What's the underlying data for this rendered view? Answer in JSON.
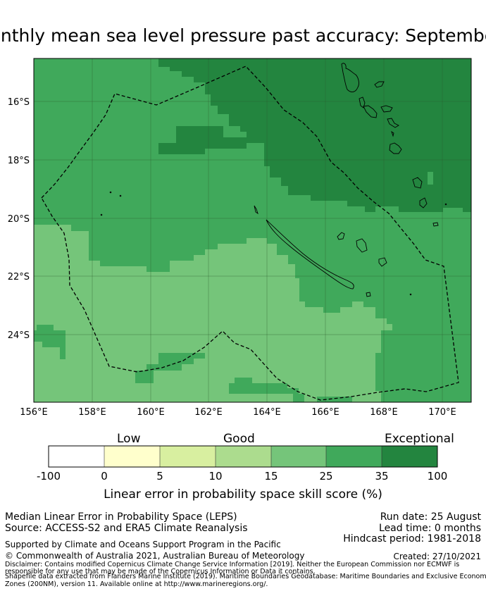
{
  "title": "Monthly mean sea level pressure past accuracy: September",
  "map": {
    "lon_ticks": [
      "156°E",
      "158°E",
      "160°E",
      "162°E",
      "164°E",
      "166°E",
      "168°E",
      "170°E"
    ],
    "lat_ticks": [
      "16°S",
      "18°S",
      "20°S",
      "22°S",
      "24°S"
    ],
    "extent": {
      "lon": [
        156.0,
        171.0
      ],
      "lat": [
        -14.5,
        -26.3
      ]
    },
    "grid": true,
    "boundary": "dashed",
    "colors": {
      "band_10_15": "#acdc8e",
      "band_15_25": "#75c57a",
      "band_25_35": "#40a95b",
      "band_35_100": "#23853f"
    }
  },
  "colorbar": {
    "categories": [
      {
        "label": "Low"
      },
      {
        "label": "Good"
      },
      {
        "label": "Exceptional"
      }
    ],
    "ticks": [
      "-100",
      "0",
      "5",
      "10",
      "15",
      "25",
      "35",
      "100"
    ],
    "colors": [
      "#ffffff",
      "#ffffcc",
      "#d8efa0",
      "#acdc8e",
      "#75c57a",
      "#40a95b",
      "#23853f"
    ],
    "label": "Linear error in probability space skill score (%)"
  },
  "info": {
    "line1": "Median Linear Error in Probability Space (LEPS)",
    "line2": "Source: ACCESS-S2 and ERA5 Climate Reanalysis",
    "run_date": "Run date: 25 August",
    "lead_time": "Lead time: 0 months",
    "hindcast": "Hindcast period: 1981-2018",
    "support": "Supported by Climate and Oceans Support Program in the Pacific",
    "copyright": "© Commonwealth of Australia 2021, Australian Bureau of Meteorology",
    "created": "Created: 27/10/2021",
    "disclaimer": [
      "Disclaimer: Contains modified Copernicus Climate Change Service Information [2019]. Neither the European Commission nor ECMWF is",
      "responsible for any use that may be made of the Copernicus Information or Data it contains.",
      "Shapefile data extracted from Flanders Marine Institute (2019). Maritime Boundaries Geodatabase: Maritime Boundaries and Exclusive Economic",
      "Zones (200NM), version 11. Available online at http://www.marineregions.org/."
    ]
  }
}
